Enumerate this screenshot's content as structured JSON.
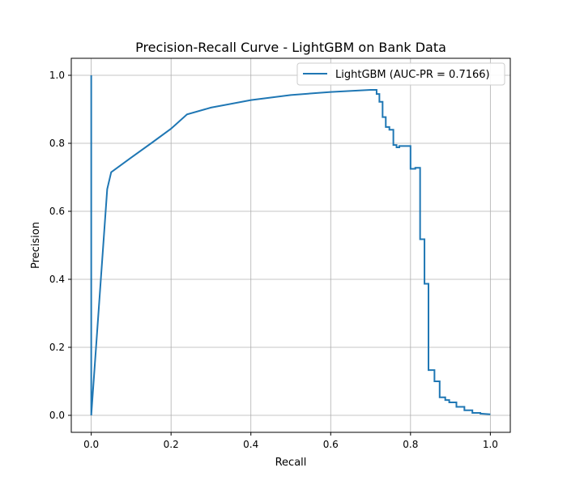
{
  "chart_data": {
    "type": "line",
    "title": "Precision-Recall Curve - LightGBM on Bank Data",
    "xlabel": "Recall",
    "ylabel": "Precision",
    "xlim": [
      -0.05,
      1.05
    ],
    "ylim": [
      -0.05,
      1.05
    ],
    "xticks": [
      0.0,
      0.2,
      0.4,
      0.6,
      0.8,
      1.0
    ],
    "xtick_labels": [
      "0.0",
      "0.2",
      "0.4",
      "0.6",
      "0.8",
      "1.0"
    ],
    "yticks": [
      0.0,
      0.2,
      0.4,
      0.6,
      0.8,
      1.0
    ],
    "ytick_labels": [
      "0.0",
      "0.2",
      "0.4",
      "0.6",
      "0.8",
      "1.0"
    ],
    "grid": true,
    "legend_position": "upper right",
    "series": [
      {
        "name": "LightGBM (AUC-PR = 0.7166)",
        "color": "#1f77b4",
        "x": [
          0.0,
          0.0,
          0.0,
          0.04,
          0.05,
          0.1,
          0.15,
          0.2,
          0.24,
          0.3,
          0.4,
          0.5,
          0.6,
          0.7,
          0.715,
          0.715,
          0.722,
          0.722,
          0.73,
          0.73,
          0.738,
          0.738,
          0.747,
          0.747,
          0.757,
          0.757,
          0.765,
          0.765,
          0.772,
          0.772,
          0.8,
          0.8,
          0.812,
          0.812,
          0.824,
          0.824,
          0.835,
          0.835,
          0.845,
          0.845,
          0.86,
          0.86,
          0.873,
          0.873,
          0.887,
          0.887,
          0.897,
          0.897,
          0.915,
          0.915,
          0.935,
          0.935,
          0.955,
          0.955,
          0.975,
          0.975,
          1.0
        ],
        "y": [
          0.0,
          1.0,
          0.0,
          0.665,
          0.715,
          0.758,
          0.8,
          0.843,
          0.885,
          0.905,
          0.927,
          0.942,
          0.951,
          0.957,
          0.957,
          0.945,
          0.945,
          0.922,
          0.922,
          0.877,
          0.877,
          0.848,
          0.848,
          0.84,
          0.84,
          0.795,
          0.795,
          0.788,
          0.788,
          0.792,
          0.792,
          0.725,
          0.725,
          0.728,
          0.728,
          0.518,
          0.518,
          0.387,
          0.387,
          0.133,
          0.133,
          0.1,
          0.1,
          0.053,
          0.053,
          0.045,
          0.045,
          0.038,
          0.038,
          0.025,
          0.025,
          0.015,
          0.015,
          0.007,
          0.007,
          0.005,
          0.003
        ]
      }
    ]
  }
}
